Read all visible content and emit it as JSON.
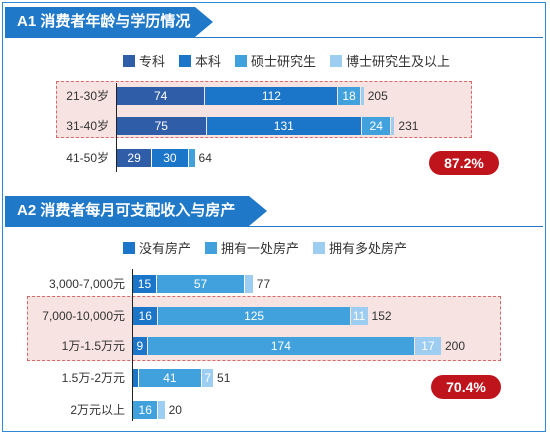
{
  "chart_data": [
    {
      "type": "bar",
      "title": "A1 消费者年龄与学历情况",
      "stacked": true,
      "orientation": "horizontal",
      "categories": [
        "21-30岁",
        "31-40岁",
        "41-50岁"
      ],
      "series": [
        {
          "name": "专科",
          "color": "#2f5da8",
          "values": [
            74,
            75,
            29
          ]
        },
        {
          "name": "本科",
          "color": "#1b75c9",
          "values": [
            112,
            131,
            30
          ]
        },
        {
          "name": "硕士研究生",
          "color": "#41a1dc",
          "values": [
            18,
            24,
            5
          ]
        },
        {
          "name": "博士研究生及以上",
          "color": "#9dcdf1",
          "values": [
            1,
            1,
            0
          ]
        }
      ],
      "totals": [
        205,
        231,
        64
      ],
      "highlight_rows": [
        0,
        1
      ],
      "badge": "87.2%"
    },
    {
      "type": "bar",
      "title": "A2 消费者每月可支配收入与房产情况",
      "stacked": true,
      "orientation": "horizontal",
      "categories": [
        "3,000-7,000元",
        "7,000-10,000元",
        "1万-1.5万元",
        "1.5万-2万元",
        "2万元以上"
      ],
      "series": [
        {
          "name": "没有房产",
          "color": "#1b75c9",
          "values": [
            15,
            16,
            9,
            3,
            0
          ]
        },
        {
          "name": "拥有一处房产",
          "color": "#41a1dc",
          "values": [
            57,
            125,
            174,
            41,
            16
          ]
        },
        {
          "name": "拥有多处房产",
          "color": "#9dcdf1",
          "values": [
            5,
            11,
            17,
            7,
            4
          ]
        }
      ],
      "totals": [
        77,
        152,
        200,
        51,
        20
      ],
      "highlight_rows": [
        1,
        2
      ],
      "badge": "70.4%"
    }
  ]
}
